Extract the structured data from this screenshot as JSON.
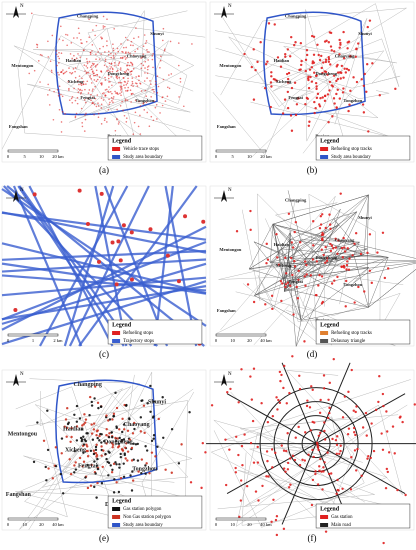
{
  "panels": [
    {
      "caption": "(a)",
      "north": "N",
      "places": [
        "Changping",
        "Shunyi",
        "Mentongou",
        "Haidian",
        "Chaoyang",
        "Dongcheng",
        "Xicheng",
        "Fengtai",
        "Tongzhou",
        "Fangshan",
        "Daxing"
      ],
      "legend": {
        "title": "Legend",
        "items": [
          "Vehicle trace stops",
          "Study area boundary"
        ]
      },
      "scale": [
        "0",
        "5",
        "10",
        "20 km"
      ]
    },
    {
      "caption": "(b)",
      "north": "N",
      "places": [
        "Changping",
        "Shunyi",
        "Mentongou",
        "Haidian",
        "Chaoyang",
        "Dongcheng",
        "Xicheng",
        "Fengtai",
        "Tongzhou",
        "Fangshan",
        "Daxing"
      ],
      "legend": {
        "title": "Legend",
        "items": [
          "Refueling stop tracks",
          "Study area boundary"
        ]
      },
      "scale": [
        "0",
        "5",
        "10",
        "20 km"
      ]
    },
    {
      "caption": "(c)",
      "north": "N",
      "places": [],
      "legend": {
        "title": "Legend",
        "items": [
          "Refueling stops",
          "Trajectory stops"
        ]
      },
      "scale": [
        "0",
        "1",
        "2 km"
      ]
    },
    {
      "caption": "(d)",
      "north": "N",
      "places": [
        "Changping",
        "Shunyi",
        "Mentongou",
        "Haidian",
        "Chaoyang",
        "Dongcheng",
        "Xicheng",
        "Fengtai",
        "Tongzhou",
        "Fangshan",
        "Daxing"
      ],
      "legend": {
        "title": "Legend",
        "items": [
          "Refueling stop tracks",
          "Delaunay triangle"
        ]
      },
      "scale": [
        "0",
        "10",
        "20",
        "40 km"
      ]
    },
    {
      "caption": "(e)",
      "north": "N",
      "places": [
        "Changping",
        "Shunyi",
        "Mentongou",
        "Haidian",
        "Chaoyang",
        "Dongcheng",
        "Xicheng",
        "Fengtai",
        "Tongzhou",
        "Fangshan",
        "Daxing"
      ],
      "legend": {
        "title": "Legend",
        "items": [
          "Gas station polygon",
          "Non Gas station polygon",
          "Study area boundary"
        ]
      },
      "scale": [
        "0",
        "10",
        "20",
        "40 km"
      ]
    },
    {
      "caption": "(f)",
      "north": "N",
      "places": [],
      "legend": {
        "title": "Legend",
        "items": [
          "Gas station",
          "Main road"
        ]
      },
      "scale": [
        "0",
        "10",
        "20",
        "40 km"
      ]
    }
  ]
}
